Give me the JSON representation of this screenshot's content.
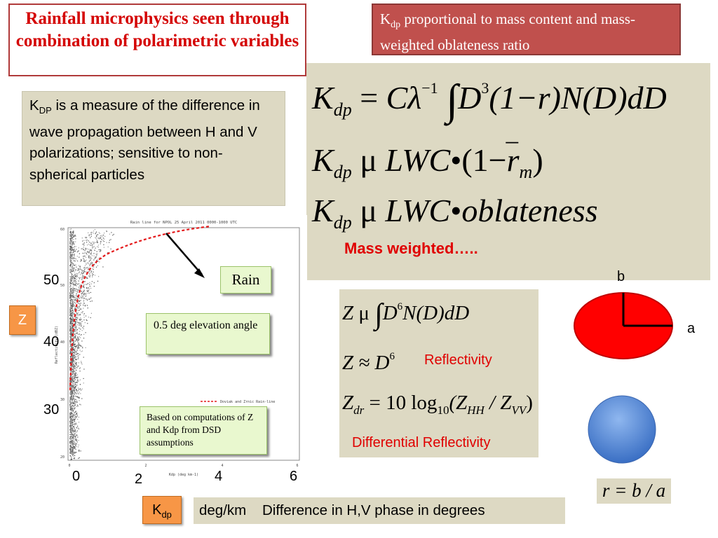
{
  "title": "Rainfall microphysics seen through combination of polarimetric variables",
  "header": {
    "k": "K",
    "sub": "dp",
    "rest": " proportional to mass content and mass-weighted oblateness ratio"
  },
  "formulas": {
    "k": "K",
    "dp": "dp",
    "eq1_rhs_c": "C",
    "eq1_lambda": "λ",
    "eq1_exp": "−1",
    "eq1_int": "∫",
    "eq1_d": "D",
    "eq1_d_exp": "3",
    "eq1_tail": "(1−r)N(D)dD",
    "mu": "μ",
    "lwc": "LWC",
    "bullet": "•",
    "eq2_open": "(1−",
    "eq2_r": "r",
    "eq2_m": "m",
    "eq2_close": ")",
    "eq3_tail": "oblateness",
    "mass_weighted": "Mass weighted….."
  },
  "description": {
    "k": "K",
    "sub": "DP",
    "text": " is a measure of the difference in wave propagation between H and V polarizations; sensitive to non-spherical particles"
  },
  "plot": {
    "y_ticks": [
      "50",
      "40",
      "30"
    ],
    "x_ticks": [
      "0",
      "2",
      "4",
      "6"
    ],
    "z_label": "Z",
    "rain_label": "Rain",
    "elevation_note": "0.5 deg elevation angle",
    "dsd_note": "Based on computations of Z and Kdp from DSD assumptions",
    "inner_title": "Rain line for NPOL 25 April 2011 0000-1000 UTC",
    "inner_xlabel": "Kdp (deg km-1)",
    "inner_legend": "Doviak and Zrnic Rain-line",
    "inner_ylabel": "Reflectivity (dBZ)",
    "inner_yticks": [
      "60",
      "50",
      "40",
      "30",
      "20"
    ],
    "inner_xticks": [
      "0",
      "2",
      "4",
      "6"
    ]
  },
  "z_box": {
    "eq1_z": "Z",
    "eq1_mu": "μ",
    "eq1_int": "∫",
    "eq1_d": "D",
    "eq1_exp": "6",
    "eq1_tail": "N(D)dD",
    "eq2": "Z ≈ D",
    "eq2_exp": "6",
    "reflectivity": "Reflectivity",
    "eq3_z": "Z",
    "eq3_dr": "dr",
    "eq3_mid": " = 10 log",
    "eq3_10": "10",
    "eq3_open": "(Z",
    "eq3_hh": "HH",
    "eq3_slash": " / Z",
    "eq3_vv": "VV",
    "eq3_close": ")",
    "diff_reflectivity": "Differential Reflectivity"
  },
  "shapes": {
    "b": "b",
    "a": "a",
    "r_eq": "r = b / a",
    "ellipse_color": "#ff0000",
    "sphere_color": "#5b8fd8"
  },
  "units": {
    "k": "K",
    "sub": "dp",
    "phase_text": "deg/km    Difference in H,V phase in degrees"
  },
  "colors": {
    "accent_red": "#c0504d",
    "panel": "#ddd9c3",
    "orange": "#f79646",
    "green_note": "#e9f8cf"
  }
}
